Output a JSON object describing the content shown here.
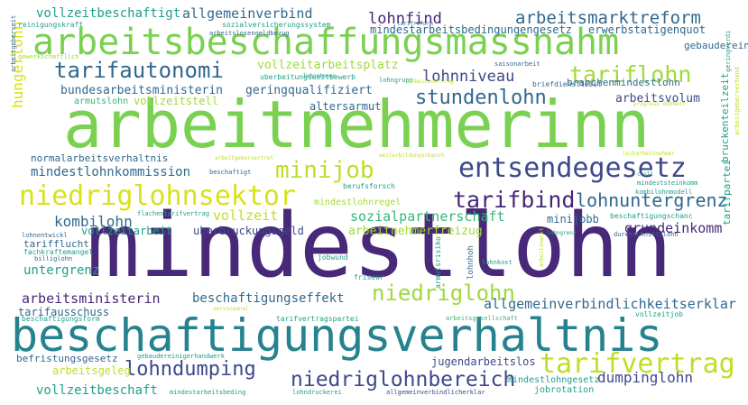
{
  "words": {
    "w001": "mindestlohn",
    "w002": "arbeitnehmerinn",
    "w003": "beschaftigungsverhaltnis",
    "w004": "arbeitsbeschaffungsmassnahm",
    "w005": "entsendegesetz",
    "w006": "niedriglohnsektor",
    "w007": "tarifvertrag",
    "w008": "minijob",
    "w009": "tarifbind",
    "w010": "tarifautonomi",
    "w011": "tariflohn",
    "w012": "niedriglohn",
    "w013": "niedriglohnbereich",
    "w014": "lohndumping",
    "w015": "stundenlohn",
    "w016": "lohnuntergrenz",
    "w017": "arbeitsmarktreform",
    "w018": "lohnfind",
    "w019": "allgemeinverbind",
    "w020": "vollzeitbeschaftigt",
    "w021": "lohnniveau",
    "w022": "hungerlohn",
    "w023": "mindestlohnkommission",
    "w024": "kombilohn",
    "w025": "vollzeit",
    "w026": "sozialpartnerschaft",
    "w027": "arbeitsministerin",
    "w028": "beschaftigungseffekt",
    "w029": "allgemeinverbindlichkeitserklar",
    "w030": "dumpinglohn",
    "w031": "vollzeitbeschaft",
    "w032": "grundeinkomm",
    "w033": "untergrenz",
    "w034": "arbeitnehmerfreizug",
    "w035": "bundesarbeitsministerin",
    "w036": "geringqualifiziert",
    "w037": "vollzeitarbeitsplatz",
    "w038": "arbeitsvolum",
    "w039": "altersarmut",
    "w040": "vollzeitstell",
    "w041": "armutslohn",
    "w042": "normalarbeitsverhaltnis",
    "w043": "tarifausschuss",
    "w044": "tarifflucht",
    "w045": "vollzeitarbeit",
    "w046": "uberbruckungsgeld",
    "w047": "minijobb",
    "w048": "mindestlohnregel",
    "w049": "arbeitsgeleg",
    "w050": "befristungsgesetz",
    "w051": "jugendarbeitslos",
    "w052": "mindestlohngesetz",
    "w053": "jobrotation",
    "w054": "mindestarbeitsbedingungengesetz",
    "w055": "erwerbstatigenquot",
    "w056": "gebauderein",
    "w057": "branchenmindestlohn",
    "w058": "arbeitsgesellschaft",
    "w059": "tarifpartei",
    "w060": "bruckenteilzeit",
    "w061": "sozialversicherungssystem",
    "w062": "arbeitslosengeldbezug",
    "w063": "uberbeitungsweitbewerb",
    "w064": "lohngrupp",
    "w065": "saisonarbeit",
    "w066": "briefdienstleist",
    "w067": "mindeststeinkomm",
    "w068": "kombilohnmodell",
    "w069": "beschaftigungschanc",
    "w070": "durchschnittslohn",
    "w071": "lohnkost",
    "w072": "lohnhoh",
    "w073": "armutsrisiko",
    "w074": "friseur",
    "w075": "berufsforsch",
    "w076": "beschaftigt",
    "w077": "tarifvertragspartei",
    "w078": "jobwund",
    "w079": "vollzeitjob",
    "w080": "mindestarbeitsbeding",
    "w081": "lohndruckerei",
    "w082": "allgemeinverbindlicherklar",
    "w083": "gebaudereinigerhandwerk",
    "w084": "beschaftigungsform",
    "w085": "billiglohn",
    "w086": "fachkraftemangel",
    "w087": "lohnentwickl",
    "w088": "flachentarifvertrag",
    "w089": "gewerkschaftlich",
    "w090": "weiterbildungschanch",
    "w091": "arbeitgebervertret",
    "w092": "arbeitgeberseit",
    "w093": "geringverdi",
    "w094": "arbeitgeberverband",
    "w095": "reinigungskraft",
    "w096": "leiharbeitnehmer",
    "w097": "lohnsteuer",
    "w098": "arbeitsvertrag",
    "w099": "lohngrenz",
    "w100": "tarifreform",
    "w101": "ccoll",
    "w102": "arbeitsmarkt",
    "w103": "progress dobbett",
    "w104": "serviceanal"
  }
}
